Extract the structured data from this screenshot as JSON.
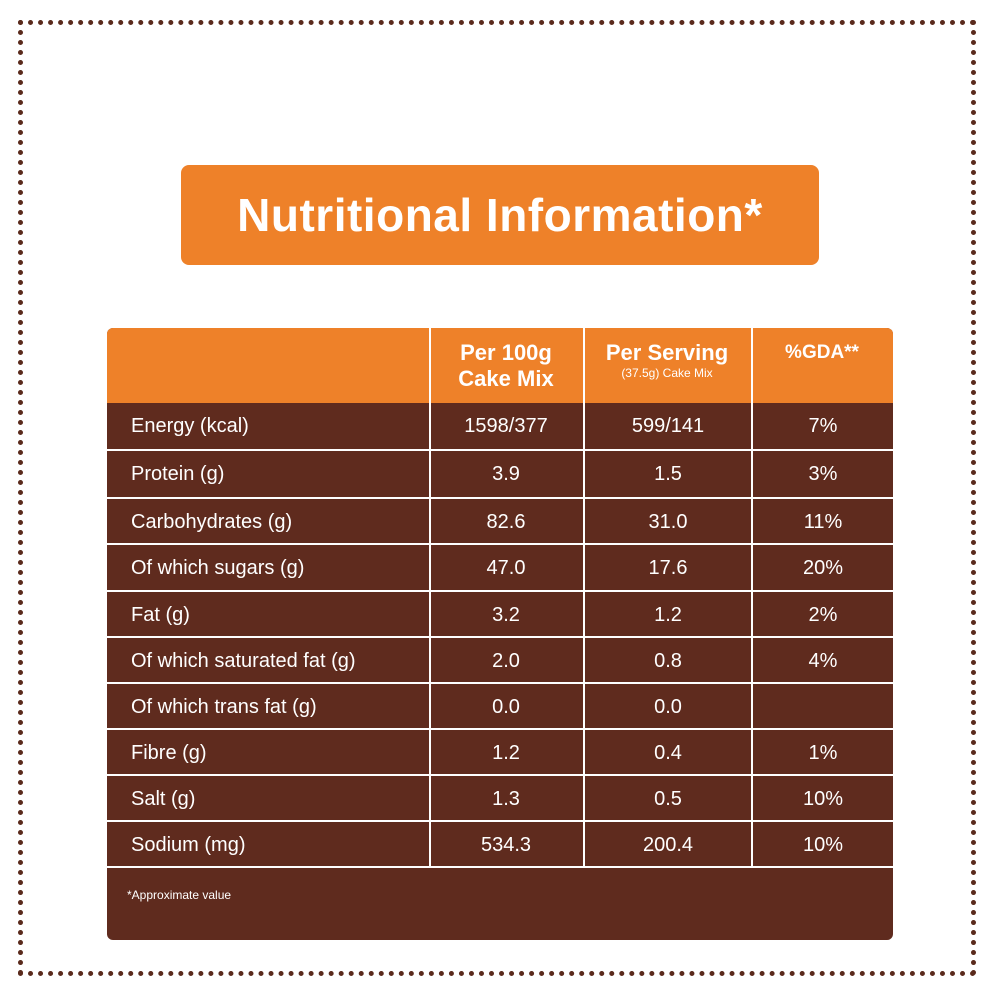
{
  "title": "Nutritional Information*",
  "table": {
    "headers": {
      "col1_main": "Per 100g",
      "col1_sub": "Cake Mix",
      "col2_main": "Per Serving",
      "col2_sub": "(37.5g) Cake Mix",
      "col3_main": "%GDA**"
    },
    "rows": [
      {
        "label": "Energy (kcal)",
        "per100": "1598/377",
        "serving": "599/141",
        "gda": "7%"
      },
      {
        "label": "Protein (g)",
        "per100": "3.9",
        "serving": "1.5",
        "gda": "3%"
      },
      {
        "label": "Carbohydrates (g)",
        "per100": "82.6",
        "serving": "31.0",
        "gda": "11%"
      },
      {
        "label": "Of which sugars (g)",
        "per100": "47.0",
        "serving": "17.6",
        "gda": "20%"
      },
      {
        "label": "Fat (g)",
        "per100": "3.2",
        "serving": "1.2",
        "gda": "2%"
      },
      {
        "label": "Of which saturated fat (g)",
        "per100": "2.0",
        "serving": "0.8",
        "gda": "4%"
      },
      {
        "label": "Of which trans fat (g)",
        "per100": "0.0",
        "serving": "0.0",
        "gda": ""
      },
      {
        "label": "Fibre (g)",
        "per100": "1.2",
        "serving": "0.4",
        "gda": "1%"
      },
      {
        "label": "Salt (g)",
        "per100": "1.3",
        "serving": "0.5",
        "gda": "10%"
      },
      {
        "label": "Sodium (mg)",
        "per100": "534.3",
        "serving": "200.4",
        "gda": "10%"
      }
    ],
    "footnote": "*Approximate value"
  },
  "colors": {
    "orange": "#ee8129",
    "brown": "#5f2b1e",
    "dots": "#5a2a1c"
  }
}
